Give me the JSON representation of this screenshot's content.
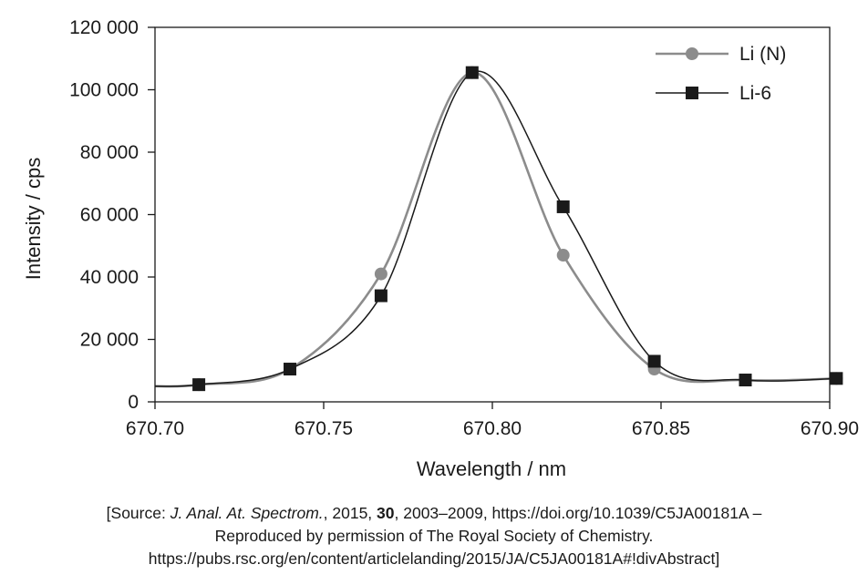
{
  "chart_data": {
    "type": "line",
    "xlabel": "Wavelength / nm",
    "ylabel": "Intensity / cps",
    "xlim": [
      670.7,
      670.9
    ],
    "ylim": [
      0,
      120000
    ],
    "x_ticks": [
      "670.70",
      "670.75",
      "670.80",
      "670.85",
      "670.90"
    ],
    "y_ticks": [
      "0",
      "20 000",
      "40 000",
      "60 000",
      "80 000",
      "100 000",
      "120 000"
    ],
    "grid": false,
    "legend": "top-right",
    "series": [
      {
        "name": "Li (N)",
        "marker": "circle",
        "color": "#8c8c8c",
        "x": [
          670.713,
          670.74,
          670.767,
          670.794,
          670.821,
          670.848,
          670.875,
          670.902
        ],
        "y": [
          5500,
          10500,
          41000,
          105500,
          47000,
          10500,
          7000,
          7500
        ]
      },
      {
        "name": "Li-6",
        "marker": "square",
        "color": "#1a1a1a",
        "x": [
          670.713,
          670.74,
          670.767,
          670.794,
          670.821,
          670.848,
          670.875,
          670.902
        ],
        "y": [
          5500,
          10500,
          34000,
          105500,
          62500,
          13000,
          7000,
          7500
        ]
      }
    ]
  },
  "source": {
    "open": "[Source: ",
    "journal": "J. Anal. At. Spectrom.",
    "year": ", 2015, ",
    "volume": "30",
    "rest": ", 2003–2009, https://doi.org/10.1039/C5JA00181A –",
    "line2": "Reproduced by permission of The Royal Society of Chemistry.",
    "line3": "https://pubs.rsc.org/en/content/articlelanding/2015/JA/C5JA00181A#!divAbstract]"
  }
}
